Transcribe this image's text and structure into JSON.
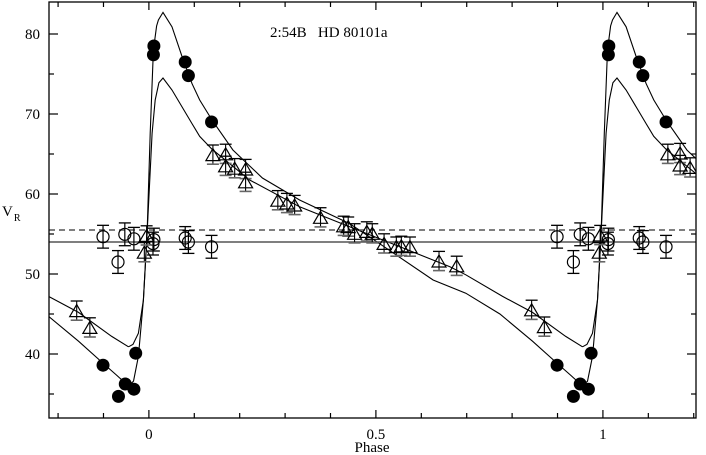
{
  "chart_data": {
    "type": "scatter",
    "title": "2:54B   HD 80101a",
    "xlabel": "Phase",
    "ylabel": "V",
    "ylabel_subscript": "R",
    "xlim": [
      -0.22,
      1.205
    ],
    "ylim": [
      32,
      84
    ],
    "x_ticks": [
      0,
      0.5,
      1
    ],
    "x_tick_labels": [
      "0",
      "0.5",
      "1"
    ],
    "x_minor_step": 0.1,
    "y_ticks": [
      40,
      50,
      60,
      70,
      80
    ],
    "y_tick_labels": [
      "40",
      "50",
      "60",
      "70",
      "80"
    ],
    "y_minor_step": 5,
    "grid": false,
    "legend": "none",
    "colors": {
      "ink": "#000000",
      "reference_line": "#555555"
    },
    "reference_lines": [
      {
        "style": "solid",
        "y": 54.0
      },
      {
        "style": "dashed",
        "y": 55.5
      }
    ],
    "series": [
      {
        "marker": "filled-circle",
        "error": 0.4,
        "points": [
          [
            -0.101,
            38.6
          ],
          [
            -0.067,
            34.7
          ],
          [
            -0.052,
            36.25
          ],
          [
            -0.033,
            35.6
          ],
          [
            -0.029,
            40.1
          ],
          [
            0.01,
            77.4
          ],
          [
            0.011,
            78.5
          ],
          [
            0.08,
            76.5
          ],
          [
            0.087,
            74.8
          ],
          [
            0.138,
            69.0
          ],
          [
            0.899,
            38.6
          ],
          [
            0.935,
            34.7
          ],
          [
            0.95,
            36.25
          ],
          [
            0.968,
            35.6
          ],
          [
            0.974,
            40.1
          ],
          [
            1.012,
            77.4
          ],
          [
            1.013,
            78.5
          ],
          [
            1.08,
            76.5
          ],
          [
            1.088,
            74.8
          ],
          [
            1.139,
            69.0
          ]
        ]
      },
      {
        "marker": "open-circle",
        "error": 0.8,
        "points": [
          [
            -0.101,
            54.66
          ],
          [
            -0.068,
            51.5
          ],
          [
            -0.053,
            54.96
          ],
          [
            -0.033,
            54.4
          ],
          [
            0.011,
            54.3
          ],
          [
            0.009,
            53.8
          ],
          [
            0.08,
            54.5
          ],
          [
            0.087,
            54.0
          ],
          [
            0.138,
            53.4
          ],
          [
            0.899,
            54.66
          ],
          [
            0.935,
            51.5
          ],
          [
            0.95,
            54.96
          ],
          [
            0.968,
            54.4
          ],
          [
            1.012,
            54.3
          ],
          [
            1.011,
            53.8
          ],
          [
            1.08,
            54.5
          ],
          [
            1.088,
            54.0
          ],
          [
            1.139,
            53.4
          ]
        ]
      },
      {
        "marker": "open-triangle",
        "error": 0.7,
        "points": [
          [
            -0.159,
            45.3
          ],
          [
            -0.13,
            43.2
          ],
          [
            -0.01,
            52.6
          ],
          [
            -0.005,
            54.7
          ],
          [
            0.141,
            64.8
          ],
          [
            0.169,
            64.9
          ],
          [
            0.169,
            63.4
          ],
          [
            0.189,
            63.1
          ],
          [
            0.213,
            63.0
          ],
          [
            0.213,
            61.4
          ],
          [
            0.284,
            59.1
          ],
          [
            0.304,
            58.75
          ],
          [
            0.321,
            58.5
          ],
          [
            0.378,
            56.96
          ],
          [
            0.429,
            55.9
          ],
          [
            0.439,
            55.8
          ],
          [
            0.453,
            54.96
          ],
          [
            0.48,
            55.2
          ],
          [
            0.492,
            54.96
          ],
          [
            0.518,
            53.7
          ],
          [
            0.545,
            53.3
          ],
          [
            0.556,
            53.4
          ],
          [
            0.575,
            53.3
          ],
          [
            0.639,
            51.5
          ],
          [
            0.678,
            50.9
          ],
          [
            0.843,
            45.4
          ],
          [
            0.871,
            43.3
          ],
          [
            0.992,
            52.6
          ],
          [
            0.994,
            54.75
          ],
          [
            1.143,
            64.9
          ],
          [
            1.17,
            65.0
          ],
          [
            1.17,
            63.5
          ],
          [
            1.192,
            63.2
          ]
        ]
      }
    ],
    "model_curves": [
      {
        "fits": "filled-circle",
        "period": 1,
        "points": [
          [
            -0.045,
            36.0
          ],
          [
            -0.034,
            36.6
          ],
          [
            -0.023,
            39.7
          ],
          [
            -0.012,
            46.75
          ],
          [
            -0.004,
            55.1
          ],
          [
            0.003,
            67.6
          ],
          [
            0.01,
            78.0
          ],
          [
            0.017,
            81.0
          ],
          [
            0.021,
            81.75
          ],
          [
            0.031,
            82.7
          ],
          [
            0.051,
            80.9
          ],
          [
            0.073,
            77.2
          ],
          [
            0.095,
            73.8
          ],
          [
            0.112,
            71.75
          ],
          [
            0.139,
            69.25
          ],
          [
            0.185,
            65.5
          ],
          [
            0.25,
            62.0
          ],
          [
            0.332,
            59.25
          ],
          [
            0.442,
            56.3
          ],
          [
            0.508,
            53.8
          ],
          [
            0.626,
            49.25
          ],
          [
            0.698,
            47.6
          ],
          [
            0.773,
            45.0
          ],
          [
            0.845,
            41.6
          ],
          [
            0.9,
            38.8
          ],
          [
            0.93,
            37.3
          ],
          [
            0.955,
            36.0
          ]
        ]
      },
      {
        "fits": "open-triangle",
        "period": 1,
        "points": [
          [
            -0.045,
            40.9
          ],
          [
            -0.035,
            41.2
          ],
          [
            -0.023,
            42.6
          ],
          [
            -0.012,
            46.75
          ],
          [
            -0.004,
            55.1
          ],
          [
            0.007,
            67.6
          ],
          [
            0.014,
            71.75
          ],
          [
            0.022,
            73.9
          ],
          [
            0.031,
            74.5
          ],
          [
            0.051,
            73.0
          ],
          [
            0.095,
            68.8
          ],
          [
            0.112,
            67.2
          ],
          [
            0.139,
            65.6
          ],
          [
            0.222,
            61.75
          ],
          [
            0.332,
            58.4
          ],
          [
            0.442,
            55.9
          ],
          [
            0.553,
            53.4
          ],
          [
            0.663,
            50.9
          ],
          [
            0.698,
            49.9
          ],
          [
            0.779,
            47.2
          ],
          [
            0.845,
            45.2
          ],
          [
            0.918,
            42.2
          ],
          [
            0.955,
            40.9
          ]
        ]
      }
    ]
  }
}
